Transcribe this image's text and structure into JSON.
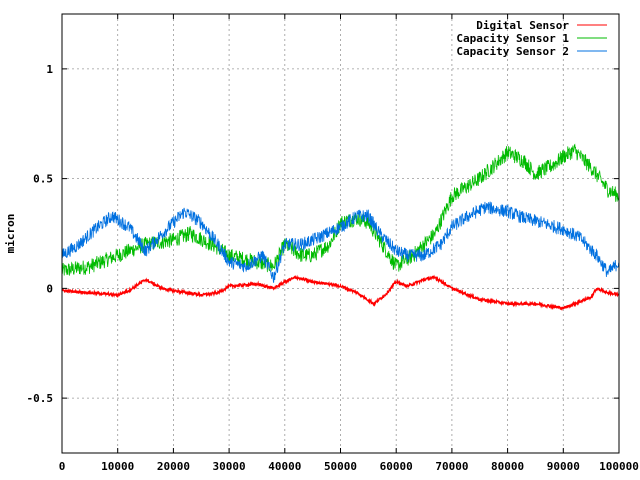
{
  "chart_data": {
    "type": "line",
    "title": "",
    "xlabel": "",
    "ylabel": "micron",
    "xlim": [
      0,
      100000
    ],
    "ylim": [
      -0.75,
      1.25
    ],
    "grid": true,
    "legend_position": "top-right",
    "x_ticks": [
      {
        "value": 0,
        "label": "0"
      },
      {
        "value": 10000,
        "label": "10000"
      },
      {
        "value": 20000,
        "label": "20000"
      },
      {
        "value": 30000,
        "label": "30000"
      },
      {
        "value": 40000,
        "label": "40000"
      },
      {
        "value": 50000,
        "label": "50000"
      },
      {
        "value": 60000,
        "label": "60000"
      },
      {
        "value": 70000,
        "label": "70000"
      },
      {
        "value": 80000,
        "label": "80000"
      },
      {
        "value": 90000,
        "label": "90000"
      },
      {
        "value": 100000,
        "label": "100000"
      }
    ],
    "y_ticks": [
      {
        "value": 1,
        "label": "1"
      },
      {
        "value": 0.5,
        "label": "0.5"
      },
      {
        "value": 0,
        "label": "0"
      },
      {
        "value": -0.5,
        "label": "-0.5"
      }
    ],
    "series": [
      {
        "name": "Digital Sensor",
        "color": "#ff0000",
        "noise": 0.006,
        "x": [
          0,
          5000,
          10000,
          12000,
          15000,
          18000,
          20000,
          25000,
          28000,
          30000,
          35000,
          38000,
          40000,
          42000,
          45000,
          48000,
          50000,
          53000,
          56000,
          58000,
          60000,
          62000,
          65000,
          67000,
          70000,
          75000,
          80000,
          85000,
          90000,
          92000,
          95000,
          96000,
          98000,
          100000
        ],
        "y": [
          -0.01,
          -0.02,
          -0.03,
          -0.01,
          0.04,
          0.0,
          -0.01,
          -0.03,
          -0.02,
          0.01,
          0.02,
          0.0,
          0.03,
          0.05,
          0.03,
          0.02,
          0.01,
          -0.02,
          -0.07,
          -0.03,
          0.03,
          0.01,
          0.04,
          0.05,
          0.0,
          -0.05,
          -0.07,
          -0.07,
          -0.09,
          -0.07,
          -0.04,
          0.0,
          -0.02,
          -0.03
        ]
      },
      {
        "name": "Capacity Sensor 1",
        "color": "#00bb00",
        "noise": 0.035,
        "x": [
          0,
          5000,
          10000,
          15000,
          20000,
          23000,
          27000,
          30000,
          35000,
          38000,
          40000,
          43000,
          45000,
          48000,
          50000,
          53000,
          55000,
          57000,
          60000,
          63000,
          65000,
          67000,
          70000,
          75000,
          78000,
          80000,
          83000,
          85000,
          88000,
          90000,
          92000,
          95000,
          98000,
          100000
        ],
        "y": [
          0.08,
          0.1,
          0.15,
          0.2,
          0.22,
          0.25,
          0.2,
          0.15,
          0.12,
          0.1,
          0.2,
          0.15,
          0.15,
          0.2,
          0.3,
          0.32,
          0.3,
          0.22,
          0.1,
          0.15,
          0.2,
          0.25,
          0.42,
          0.5,
          0.57,
          0.62,
          0.58,
          0.52,
          0.56,
          0.6,
          0.63,
          0.55,
          0.45,
          0.42
        ]
      },
      {
        "name": "Capacity Sensor 2",
        "color": "#0070e0",
        "noise": 0.03,
        "x": [
          0,
          3000,
          6000,
          9000,
          12000,
          15000,
          18000,
          20000,
          22000,
          25000,
          28000,
          30000,
          33000,
          36000,
          38000,
          40000,
          43000,
          46000,
          50000,
          53000,
          55000,
          57000,
          60000,
          62000,
          65000,
          68000,
          70000,
          73000,
          76000,
          80000,
          83000,
          86000,
          90000,
          93000,
          96000,
          98000,
          100000
        ],
        "y": [
          0.15,
          0.2,
          0.27,
          0.33,
          0.28,
          0.17,
          0.25,
          0.3,
          0.35,
          0.3,
          0.2,
          0.12,
          0.1,
          0.15,
          0.05,
          0.2,
          0.2,
          0.23,
          0.28,
          0.33,
          0.33,
          0.25,
          0.17,
          0.15,
          0.15,
          0.2,
          0.28,
          0.33,
          0.37,
          0.35,
          0.32,
          0.3,
          0.27,
          0.23,
          0.15,
          0.07,
          0.12
        ]
      }
    ]
  }
}
